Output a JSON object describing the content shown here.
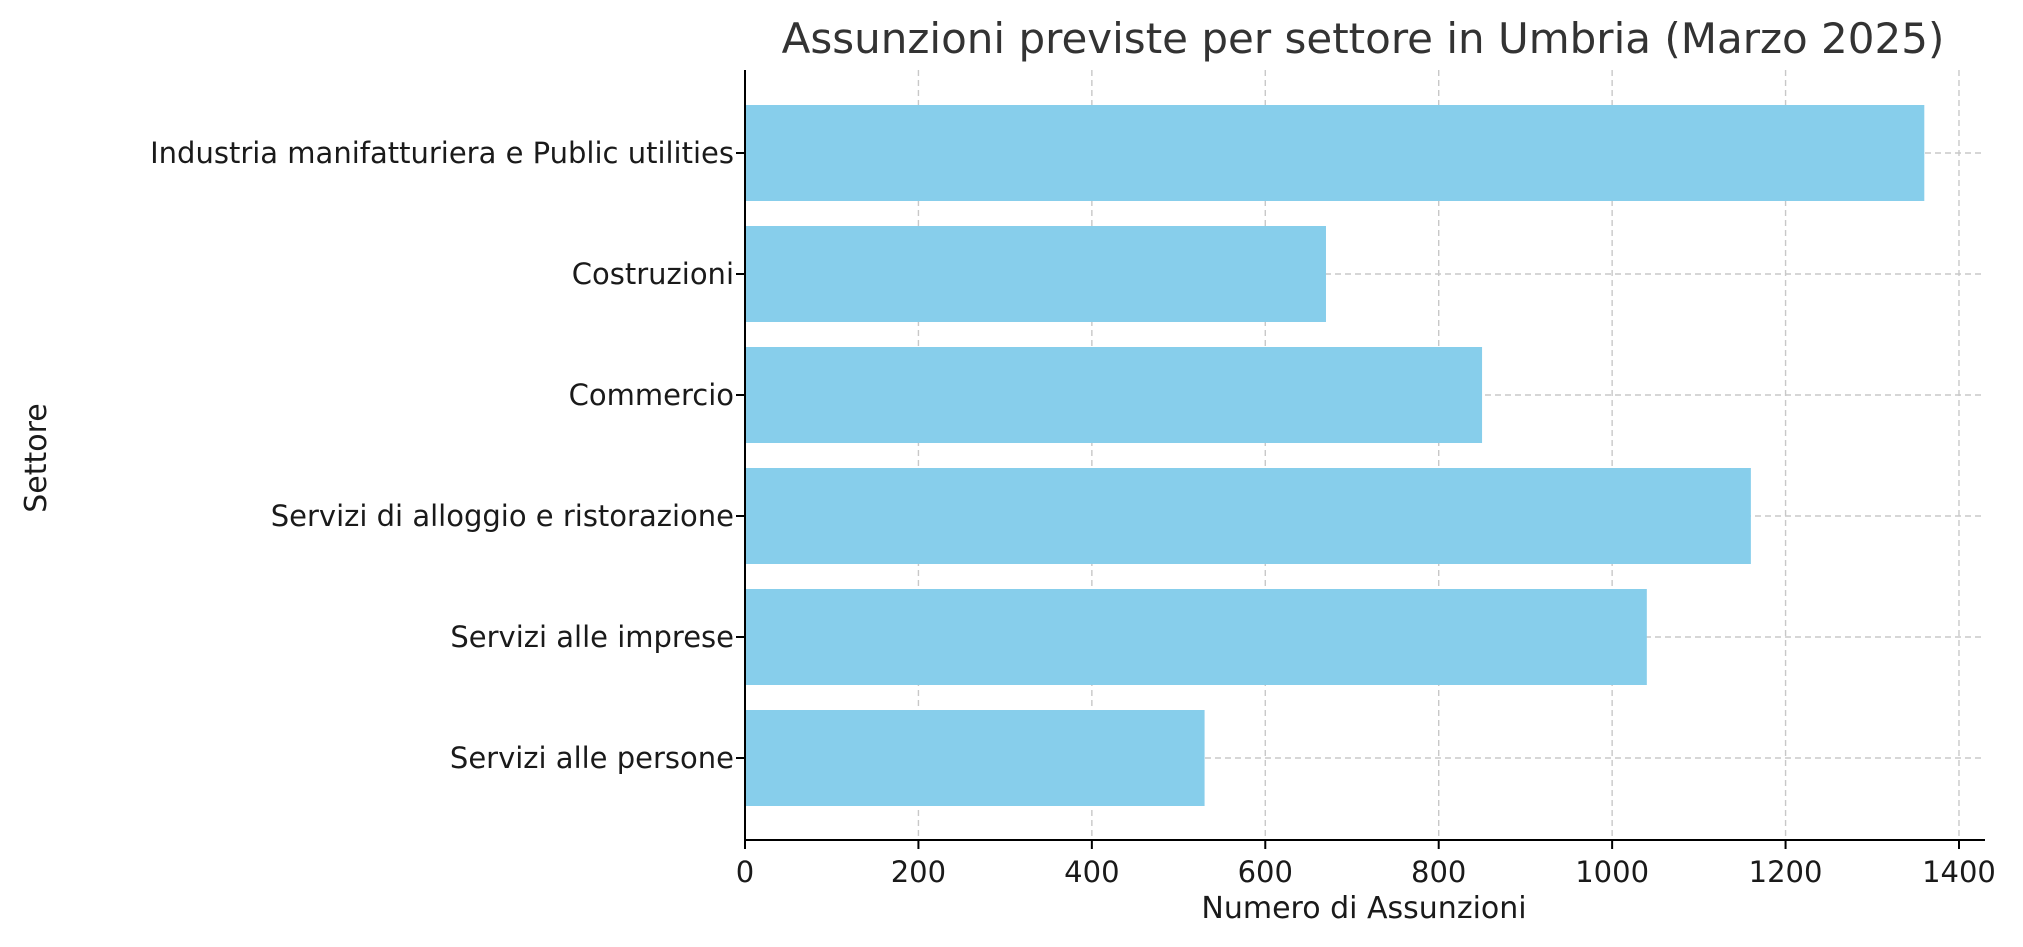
{
  "chart_data": {
    "type": "bar",
    "orientation": "horizontal",
    "title": "Assunzioni previste per settore in Umbria (Marzo 2025)",
    "xlabel": "Numero di Assunzioni",
    "ylabel": "Settore",
    "categories": [
      "Industria manifatturiera e Public utilities",
      "Costruzioni",
      "Commercio",
      "Servizi di alloggio e ristorazione",
      "Servizi alle imprese",
      "Servizi alle persone"
    ],
    "values": [
      1360,
      670,
      850,
      1160,
      1040,
      530
    ],
    "xlim": [
      0,
      1430
    ],
    "xticks": [
      0,
      200,
      400,
      600,
      800,
      1000,
      1200,
      1400
    ],
    "grid": true,
    "bar_color": "#87ceeb"
  }
}
